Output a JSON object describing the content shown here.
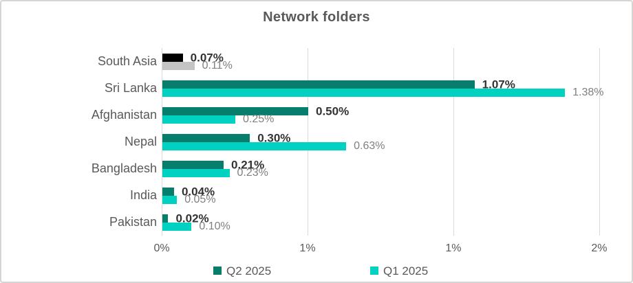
{
  "title": "Network folders",
  "colors": {
    "q2_series": "#077e6c",
    "q1_series": "#00d1c1",
    "south_asia_q2": "#000000",
    "south_asia_q1": "#c5c4c4",
    "gridline": "#d9d9d9",
    "axis_text": "#595959",
    "q2_label_text": "#333333",
    "q1_label_text": "#7f7f7f",
    "border": "#d6d3d3"
  },
  "chart_data": {
    "type": "bar",
    "orientation": "horizontal",
    "title": "Network folders",
    "categories": [
      "South Asia",
      "Sri Lanka",
      "Afghanistan",
      "Nepal",
      "Bangladesh",
      "India",
      "Pakistan"
    ],
    "series": [
      {
        "name": "Q2 2025",
        "color": "#077e6c",
        "values": [
          0.07,
          1.07,
          0.5,
          0.3,
          0.21,
          0.04,
          0.02
        ],
        "labels": [
          "0.07%",
          "1.07%",
          "0.50%",
          "0.30%",
          "0.21%",
          "0.04%",
          "0.02%"
        ],
        "point_colors": {
          "0": "#000000"
        }
      },
      {
        "name": "Q1 2025",
        "color": "#00d1c1",
        "values": [
          0.11,
          1.38,
          0.25,
          0.63,
          0.23,
          0.05,
          0.1
        ],
        "labels": [
          "0.11%",
          "1.38%",
          "0.25%",
          "0.63%",
          "0.23%",
          "0.05%",
          "0.10%"
        ],
        "point_colors": {
          "0": "#c5c4c4"
        }
      }
    ],
    "x_axis": {
      "max": 1.526,
      "ticks": [
        {
          "v": 0,
          "label": "0%"
        },
        {
          "v": 0.5,
          "label": "1%"
        },
        {
          "v": 1.0,
          "label": "1%"
        },
        {
          "v": 1.5,
          "label": "2%"
        }
      ]
    },
    "grid": true,
    "legend_position": "bottom",
    "legend": [
      "Q2 2025",
      "Q1 2025"
    ]
  }
}
